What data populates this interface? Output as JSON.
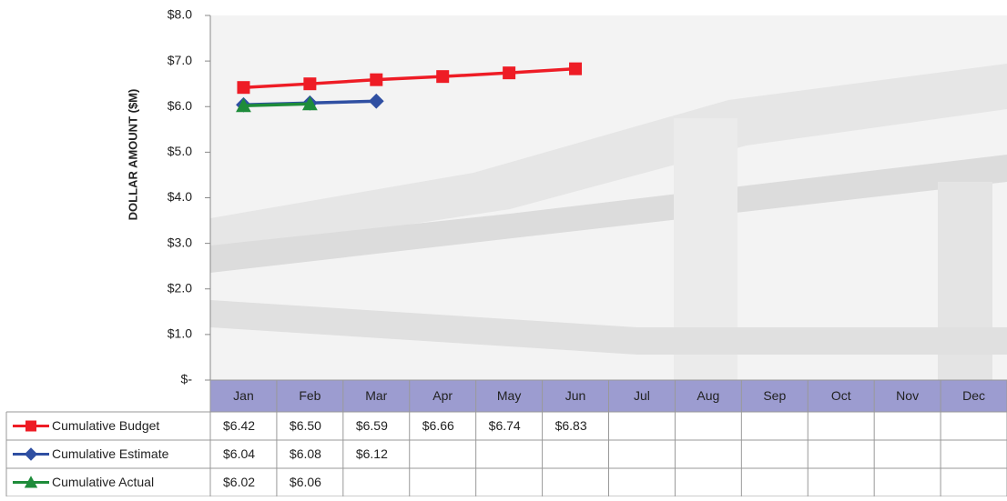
{
  "chart_data": {
    "type": "line",
    "y_label": "DOLLAR AMOUNT ($M)",
    "categories": [
      "Jan",
      "Feb",
      "Mar",
      "Apr",
      "May",
      "Jun",
      "Jul",
      "Aug",
      "Sep",
      "Oct",
      "Nov",
      "Dec"
    ],
    "series": [
      {
        "name": "Cumulative Budget",
        "color": "#ee1c25",
        "marker": "square",
        "values": [
          6.42,
          6.5,
          6.59,
          6.66,
          6.74,
          6.83,
          null,
          null,
          null,
          null,
          null,
          null
        ],
        "value_labels": [
          "$6.42",
          "$6.50",
          "$6.59",
          "$6.66",
          "$6.74",
          "$6.83",
          null,
          null,
          null,
          null,
          null,
          null
        ]
      },
      {
        "name": "Cumulative Estimate",
        "color": "#2f4fa2",
        "marker": "diamond",
        "values": [
          6.04,
          6.08,
          6.12,
          null,
          null,
          null,
          null,
          null,
          null,
          null,
          null,
          null
        ],
        "value_labels": [
          "$6.04",
          "$6.08",
          "$6.12",
          null,
          null,
          null,
          null,
          null,
          null,
          null,
          null,
          null
        ]
      },
      {
        "name": "Cumulative Actual",
        "color": "#1e8c3a",
        "marker": "triangle",
        "values": [
          6.02,
          6.06,
          null,
          null,
          null,
          null,
          null,
          null,
          null,
          null,
          null,
          null
        ],
        "value_labels": [
          "$6.02",
          "$6.06",
          null,
          null,
          null,
          null,
          null,
          null,
          null,
          null,
          null,
          null
        ]
      }
    ],
    "ylim": [
      0,
      8
    ],
    "yticks": [
      {
        "value": 0,
        "label": "$-"
      },
      {
        "value": 1,
        "label": "$1.0"
      },
      {
        "value": 2,
        "label": "$2.0"
      },
      {
        "value": 3,
        "label": "$3.0"
      },
      {
        "value": 4,
        "label": "$4.0"
      },
      {
        "value": 5,
        "label": "$5.0"
      },
      {
        "value": 6,
        "label": "$6.0"
      },
      {
        "value": 7,
        "label": "$7.0"
      },
      {
        "value": 8,
        "label": "$8.0"
      }
    ]
  }
}
